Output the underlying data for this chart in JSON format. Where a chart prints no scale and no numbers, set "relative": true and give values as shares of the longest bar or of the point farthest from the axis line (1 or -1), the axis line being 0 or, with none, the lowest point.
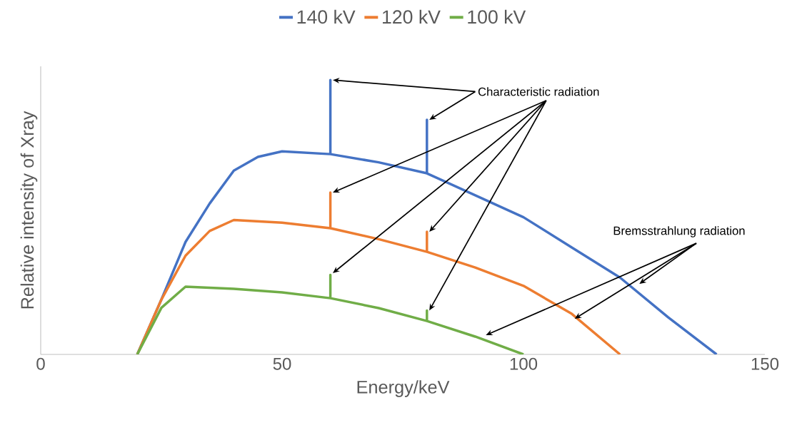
{
  "chart_data": {
    "type": "line",
    "relative": true,
    "xlabel": "Energy/keV",
    "ylabel": "Relative intensity of Xray",
    "xlim": [
      0,
      150
    ],
    "xticks": [
      0,
      50,
      100,
      150
    ],
    "legend": "top",
    "marker": "none",
    "line_style": "solid",
    "annotations": [
      "Characteristic radiation",
      "Bremsstrahlung radiation"
    ],
    "series": [
      {
        "name": "140 kV",
        "color": "#4472c4",
        "x": [
          20,
          25,
          30,
          35,
          40,
          45,
          50,
          60,
          60,
          60,
          70,
          80,
          80,
          80,
          90,
          100,
          110,
          120,
          130,
          140
        ],
        "values": [
          0,
          0.2,
          0.41,
          0.55,
          0.67,
          0.72,
          0.74,
          0.73,
          1,
          0.73,
          0.7,
          0.66,
          0.855,
          0.66,
          0.58,
          0.5,
          0.39,
          0.28,
          0.135,
          0
        ]
      },
      {
        "name": "120 kV",
        "color": "#ed7d31",
        "x": [
          20,
          25,
          30,
          35,
          40,
          50,
          60,
          60,
          60,
          70,
          80,
          80,
          80,
          90,
          100,
          110,
          120
        ],
        "values": [
          0,
          0.2,
          0.36,
          0.45,
          0.49,
          0.48,
          0.46,
          0.59,
          0.46,
          0.42,
          0.374,
          0.447,
          0.374,
          0.317,
          0.25,
          0.148,
          0
        ]
      },
      {
        "name": "100 kV",
        "color": "#70ad47",
        "x": [
          20,
          25,
          30,
          40,
          50,
          60,
          60,
          60,
          70,
          80,
          80,
          80,
          90,
          100
        ],
        "values": [
          0,
          0.17,
          0.247,
          0.239,
          0.226,
          0.205,
          0.29,
          0.205,
          0.169,
          0.122,
          0.16,
          0.122,
          0.065,
          0
        ]
      }
    ]
  }
}
